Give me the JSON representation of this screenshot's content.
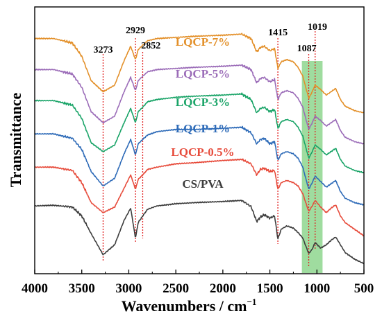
{
  "chart_data": {
    "type": "line",
    "xlabel": "Wavenumbers / cm",
    "xlabel_sup": "−1",
    "ylabel": "Transmittance",
    "xlim": [
      4000,
      500
    ],
    "x_reversed": true,
    "x_ticks": [
      "4000",
      "3500",
      "3000",
      "2500",
      "2000",
      "1500",
      "1000",
      "500"
    ],
    "x_tick_values": [
      4000,
      3500,
      3000,
      2500,
      2000,
      1500,
      1000,
      500
    ],
    "y_ticks_shown": false,
    "peak_lines": [
      {
        "x": 3273,
        "label": "3273"
      },
      {
        "x": 2929,
        "label": "2929"
      },
      {
        "x": 2852,
        "label": "2852"
      },
      {
        "x": 1415,
        "label": "1415"
      },
      {
        "x": 1087,
        "label": "1087"
      },
      {
        "x": 1019,
        "label": "1019"
      }
    ],
    "highlight_band": {
      "x_from": 1160,
      "x_to": 940,
      "color": "#7fd07f"
    },
    "series": [
      {
        "name": "CS/PVA",
        "color": "#3d3d3d",
        "points": [
          [
            4000,
            0.265
          ],
          [
            3800,
            0.268
          ],
          [
            3600,
            0.26
          ],
          [
            3500,
            0.22
          ],
          [
            3400,
            0.14
          ],
          [
            3273,
            0.045
          ],
          [
            3150,
            0.09
          ],
          [
            3050,
            0.2
          ],
          [
            2980,
            0.255
          ],
          [
            2929,
            0.12
          ],
          [
            2900,
            0.19
          ],
          [
            2852,
            0.22
          ],
          [
            2800,
            0.25
          ],
          [
            2700,
            0.265
          ],
          [
            2500,
            0.275
          ],
          [
            2300,
            0.28
          ],
          [
            2000,
            0.285
          ],
          [
            1800,
            0.29
          ],
          [
            1700,
            0.262
          ],
          [
            1640,
            0.195
          ],
          [
            1600,
            0.215
          ],
          [
            1560,
            0.225
          ],
          [
            1500,
            0.21
          ],
          [
            1450,
            0.22
          ],
          [
            1415,
            0.115
          ],
          [
            1380,
            0.16
          ],
          [
            1320,
            0.175
          ],
          [
            1250,
            0.165
          ],
          [
            1200,
            0.145
          ],
          [
            1150,
            0.12
          ],
          [
            1087,
            0.05
          ],
          [
            1050,
            0.07
          ],
          [
            1019,
            0.1
          ],
          [
            960,
            0.075
          ],
          [
            900,
            0.09
          ],
          [
            850,
            0.11
          ],
          [
            800,
            0.125
          ],
          [
            750,
            0.09
          ],
          [
            700,
            0.055
          ],
          [
            600,
            0.025
          ],
          [
            500,
            0.005
          ]
        ]
      },
      {
        "name": "LQCP-0.5%",
        "color": "#e74c3c",
        "points": [
          [
            4000,
            0.44
          ],
          [
            3800,
            0.44
          ],
          [
            3600,
            0.425
          ],
          [
            3500,
            0.37
          ],
          [
            3400,
            0.28
          ],
          [
            3273,
            0.235
          ],
          [
            3150,
            0.26
          ],
          [
            3050,
            0.345
          ],
          [
            2980,
            0.405
          ],
          [
            2929,
            0.34
          ],
          [
            2900,
            0.385
          ],
          [
            2852,
            0.405
          ],
          [
            2800,
            0.43
          ],
          [
            2700,
            0.44
          ],
          [
            2500,
            0.455
          ],
          [
            2300,
            0.46
          ],
          [
            2000,
            0.47
          ],
          [
            1800,
            0.475
          ],
          [
            1700,
            0.455
          ],
          [
            1640,
            0.405
          ],
          [
            1600,
            0.43
          ],
          [
            1560,
            0.435
          ],
          [
            1500,
            0.42
          ],
          [
            1450,
            0.425
          ],
          [
            1415,
            0.34
          ],
          [
            1380,
            0.37
          ],
          [
            1320,
            0.38
          ],
          [
            1250,
            0.37
          ],
          [
            1200,
            0.355
          ],
          [
            1150,
            0.32
          ],
          [
            1087,
            0.24
          ],
          [
            1050,
            0.265
          ],
          [
            1019,
            0.29
          ],
          [
            960,
            0.26
          ],
          [
            900,
            0.235
          ],
          [
            850,
            0.255
          ],
          [
            800,
            0.27
          ],
          [
            750,
            0.22
          ],
          [
            700,
            0.19
          ],
          [
            600,
            0.16
          ],
          [
            500,
            0.13
          ]
        ]
      },
      {
        "name": "LQCP-1%",
        "color": "#2e6bb8",
        "points": [
          [
            4000,
            0.59
          ],
          [
            3800,
            0.59
          ],
          [
            3600,
            0.57
          ],
          [
            3500,
            0.52
          ],
          [
            3400,
            0.42
          ],
          [
            3273,
            0.355
          ],
          [
            3150,
            0.39
          ],
          [
            3050,
            0.5
          ],
          [
            2980,
            0.565
          ],
          [
            2929,
            0.495
          ],
          [
            2900,
            0.545
          ],
          [
            2852,
            0.565
          ],
          [
            2800,
            0.585
          ],
          [
            2700,
            0.6
          ],
          [
            2500,
            0.61
          ],
          [
            2300,
            0.61
          ],
          [
            2000,
            0.615
          ],
          [
            1800,
            0.62
          ],
          [
            1700,
            0.595
          ],
          [
            1640,
            0.545
          ],
          [
            1600,
            0.565
          ],
          [
            1560,
            0.57
          ],
          [
            1500,
            0.545
          ],
          [
            1450,
            0.555
          ],
          [
            1415,
            0.47
          ],
          [
            1380,
            0.5
          ],
          [
            1320,
            0.51
          ],
          [
            1250,
            0.5
          ],
          [
            1200,
            0.48
          ],
          [
            1150,
            0.44
          ],
          [
            1087,
            0.34
          ],
          [
            1050,
            0.37
          ],
          [
            1019,
            0.4
          ],
          [
            960,
            0.375
          ],
          [
            900,
            0.35
          ],
          [
            850,
            0.365
          ],
          [
            800,
            0.38
          ],
          [
            750,
            0.33
          ],
          [
            700,
            0.3
          ],
          [
            600,
            0.28
          ],
          [
            500,
            0.27
          ]
        ]
      },
      {
        "name": "LQCP-3%",
        "color": "#1aa468",
        "points": [
          [
            4000,
            0.74
          ],
          [
            3800,
            0.74
          ],
          [
            3600,
            0.72
          ],
          [
            3500,
            0.66
          ],
          [
            3400,
            0.55
          ],
          [
            3273,
            0.51
          ],
          [
            3150,
            0.54
          ],
          [
            3050,
            0.64
          ],
          [
            2980,
            0.705
          ],
          [
            2929,
            0.64
          ],
          [
            2900,
            0.69
          ],
          [
            2852,
            0.71
          ],
          [
            2800,
            0.735
          ],
          [
            2700,
            0.745
          ],
          [
            2500,
            0.755
          ],
          [
            2300,
            0.76
          ],
          [
            2000,
            0.765
          ],
          [
            1800,
            0.77
          ],
          [
            1700,
            0.745
          ],
          [
            1640,
            0.685
          ],
          [
            1600,
            0.705
          ],
          [
            1560,
            0.71
          ],
          [
            1500,
            0.69
          ],
          [
            1450,
            0.7
          ],
          [
            1415,
            0.615
          ],
          [
            1380,
            0.645
          ],
          [
            1320,
            0.655
          ],
          [
            1250,
            0.645
          ],
          [
            1200,
            0.62
          ],
          [
            1150,
            0.58
          ],
          [
            1087,
            0.48
          ],
          [
            1050,
            0.51
          ],
          [
            1019,
            0.54
          ],
          [
            960,
            0.52
          ],
          [
            900,
            0.495
          ],
          [
            850,
            0.51
          ],
          [
            800,
            0.525
          ],
          [
            750,
            0.475
          ],
          [
            700,
            0.445
          ],
          [
            600,
            0.425
          ],
          [
            500,
            0.415
          ]
        ]
      },
      {
        "name": "LQCP-5%",
        "color": "#9b6cb8",
        "points": [
          [
            4000,
            0.88
          ],
          [
            3800,
            0.88
          ],
          [
            3600,
            0.86
          ],
          [
            3500,
            0.8
          ],
          [
            3400,
            0.69
          ],
          [
            3273,
            0.64
          ],
          [
            3150,
            0.67
          ],
          [
            3050,
            0.78
          ],
          [
            2980,
            0.845
          ],
          [
            2929,
            0.785
          ],
          [
            2900,
            0.83
          ],
          [
            2852,
            0.85
          ],
          [
            2800,
            0.87
          ],
          [
            2700,
            0.88
          ],
          [
            2500,
            0.885
          ],
          [
            2300,
            0.89
          ],
          [
            2000,
            0.895
          ],
          [
            1800,
            0.9
          ],
          [
            1700,
            0.88
          ],
          [
            1640,
            0.82
          ],
          [
            1600,
            0.84
          ],
          [
            1560,
            0.845
          ],
          [
            1500,
            0.825
          ],
          [
            1450,
            0.835
          ],
          [
            1415,
            0.745
          ],
          [
            1380,
            0.775
          ],
          [
            1320,
            0.785
          ],
          [
            1250,
            0.775
          ],
          [
            1200,
            0.75
          ],
          [
            1150,
            0.71
          ],
          [
            1087,
            0.61
          ],
          [
            1050,
            0.64
          ],
          [
            1019,
            0.67
          ],
          [
            960,
            0.65
          ],
          [
            900,
            0.625
          ],
          [
            850,
            0.64
          ],
          [
            800,
            0.655
          ],
          [
            750,
            0.605
          ],
          [
            700,
            0.575
          ],
          [
            600,
            0.555
          ],
          [
            500,
            0.545
          ]
        ]
      },
      {
        "name": "LQCP-7%",
        "color": "#e3902a",
        "points": [
          [
            4000,
            1.02
          ],
          [
            3800,
            1.02
          ],
          [
            3600,
            1.0
          ],
          [
            3500,
            0.94
          ],
          [
            3400,
            0.83
          ],
          [
            3273,
            0.78
          ],
          [
            3150,
            0.81
          ],
          [
            3050,
            0.92
          ],
          [
            2980,
            0.985
          ],
          [
            2929,
            0.925
          ],
          [
            2900,
            0.97
          ],
          [
            2852,
            0.99
          ],
          [
            2800,
            1.01
          ],
          [
            2700,
            1.02
          ],
          [
            2500,
            1.025
          ],
          [
            2300,
            1.03
          ],
          [
            2000,
            1.035
          ],
          [
            1800,
            1.04
          ],
          [
            1700,
            1.02
          ],
          [
            1640,
            0.96
          ],
          [
            1600,
            0.98
          ],
          [
            1560,
            0.985
          ],
          [
            1500,
            0.965
          ],
          [
            1450,
            0.975
          ],
          [
            1415,
            0.885
          ],
          [
            1380,
            0.915
          ],
          [
            1320,
            0.925
          ],
          [
            1250,
            0.915
          ],
          [
            1200,
            0.89
          ],
          [
            1150,
            0.85
          ],
          [
            1087,
            0.75
          ],
          [
            1050,
            0.78
          ],
          [
            1019,
            0.81
          ],
          [
            960,
            0.79
          ],
          [
            900,
            0.765
          ],
          [
            850,
            0.78
          ],
          [
            800,
            0.795
          ],
          [
            750,
            0.745
          ],
          [
            700,
            0.715
          ],
          [
            600,
            0.695
          ],
          [
            500,
            0.685
          ]
        ]
      }
    ],
    "grid": false,
    "legend": "inline labels above curves"
  }
}
